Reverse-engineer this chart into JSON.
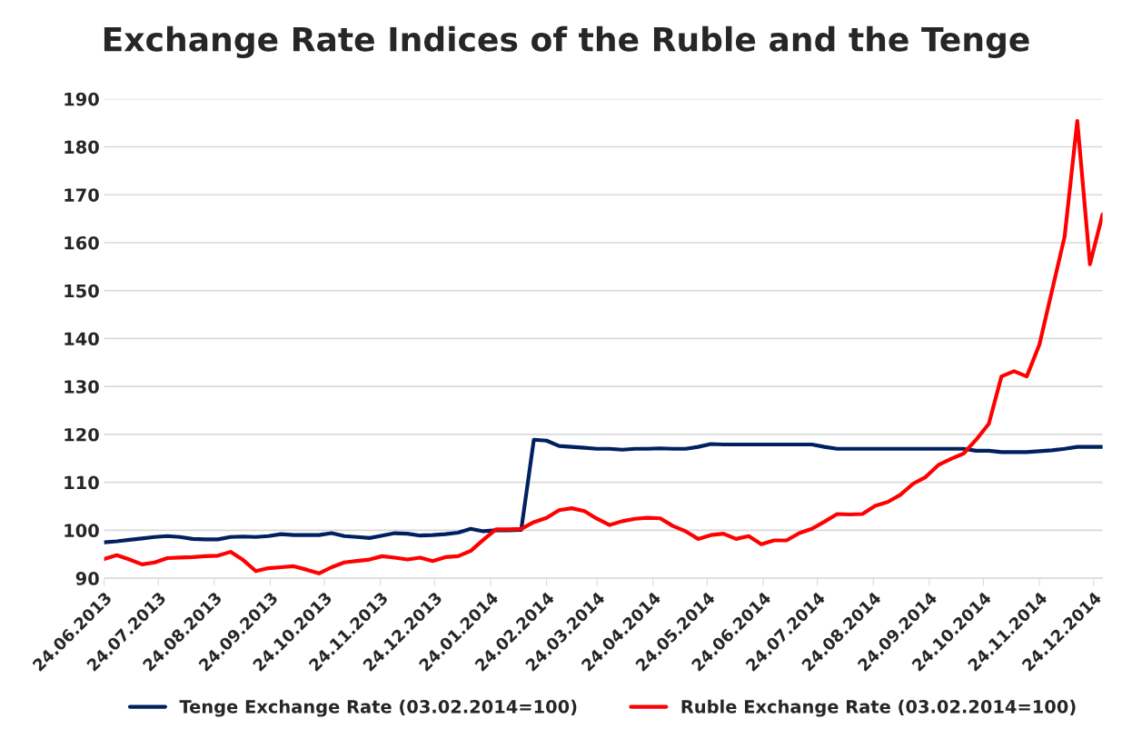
{
  "chart_data": {
    "type": "line",
    "title": "Exchange Rate Indices of the Ruble and the Tenge",
    "x": [
      "2013-06-24",
      "2013-07-01",
      "2013-07-08",
      "2013-07-15",
      "2013-07-22",
      "2013-07-29",
      "2013-08-05",
      "2013-08-12",
      "2013-08-19",
      "2013-08-26",
      "2013-09-02",
      "2013-09-09",
      "2013-09-16",
      "2013-09-23",
      "2013-09-30",
      "2013-10-07",
      "2013-10-14",
      "2013-10-21",
      "2013-10-28",
      "2013-11-04",
      "2013-11-11",
      "2013-11-18",
      "2013-11-25",
      "2013-12-02",
      "2013-12-09",
      "2013-12-16",
      "2013-12-23",
      "2013-12-30",
      "2014-01-06",
      "2014-01-13",
      "2014-01-20",
      "2014-01-27",
      "2014-02-03",
      "2014-02-10",
      "2014-02-17",
      "2014-02-24",
      "2014-03-03",
      "2014-03-10",
      "2014-03-17",
      "2014-03-24",
      "2014-03-31",
      "2014-04-07",
      "2014-04-14",
      "2014-04-21",
      "2014-04-28",
      "2014-05-05",
      "2014-05-12",
      "2014-05-19",
      "2014-05-26",
      "2014-06-02",
      "2014-06-09",
      "2014-06-16",
      "2014-06-23",
      "2014-06-30",
      "2014-07-07",
      "2014-07-14",
      "2014-07-21",
      "2014-07-28",
      "2014-08-04",
      "2014-08-11",
      "2014-08-18",
      "2014-08-25",
      "2014-09-01",
      "2014-09-08",
      "2014-09-15",
      "2014-09-22",
      "2014-09-29",
      "2014-10-06",
      "2014-10-13",
      "2014-10-20",
      "2014-10-27",
      "2014-11-03",
      "2014-11-10",
      "2014-11-17",
      "2014-11-24",
      "2014-12-01",
      "2014-12-08",
      "2014-12-15",
      "2014-12-22",
      "2014-12-29"
    ],
    "series": [
      {
        "name": "Tenge Exchange Rate (03.02.2014=100)",
        "color": "#002060",
        "values": [
          97.5,
          97.7,
          98.0,
          98.3,
          98.6,
          98.8,
          98.6,
          98.2,
          98.1,
          98.1,
          98.6,
          98.7,
          98.6,
          98.8,
          99.2,
          99.0,
          99.0,
          99.0,
          99.4,
          98.8,
          98.6,
          98.4,
          98.9,
          99.4,
          99.3,
          98.9,
          99.0,
          99.2,
          99.5,
          100.3,
          99.8,
          100.0,
          100.0,
          100.1,
          118.9,
          118.7,
          117.6,
          117.4,
          117.2,
          117.0,
          117.0,
          116.8,
          117.0,
          117.0,
          117.1,
          117.0,
          117.0,
          117.4,
          118.0,
          117.9,
          117.9,
          117.9,
          117.9,
          117.9,
          117.9,
          117.9,
          117.9,
          117.4,
          117.0,
          117.0,
          117.0,
          117.0,
          117.0,
          117.0,
          117.0,
          117.0,
          117.0,
          117.0,
          117.0,
          116.6,
          116.6,
          116.3,
          116.3,
          116.3,
          116.5,
          116.7,
          117.0,
          117.4,
          117.4,
          117.4
        ]
      },
      {
        "name": "Ruble Exchange Rate (03.02.2014=100)",
        "color": "#ff0000",
        "values": [
          94.0,
          94.8,
          93.9,
          92.9,
          93.3,
          94.2,
          94.3,
          94.4,
          94.6,
          94.7,
          95.5,
          93.8,
          91.5,
          92.1,
          92.3,
          92.5,
          91.8,
          91.0,
          92.3,
          93.3,
          93.6,
          93.9,
          94.6,
          94.3,
          93.9,
          94.3,
          93.6,
          94.4,
          94.6,
          95.7,
          98.0,
          100.2,
          100.2,
          100.3,
          101.7,
          102.6,
          104.2,
          104.6,
          104.0,
          102.4,
          101.1,
          101.9,
          102.4,
          102.6,
          102.5,
          100.9,
          99.8,
          98.2,
          99.0,
          99.3,
          98.2,
          98.8,
          97.1,
          97.9,
          97.9,
          99.4,
          100.3,
          101.8,
          103.4,
          103.3,
          103.4,
          105.1,
          105.9,
          107.4,
          109.7,
          111.1,
          113.6,
          114.9,
          116.0,
          118.9,
          122.2,
          132.1,
          133.2,
          132.1,
          138.7,
          150.0,
          161.3,
          185.4,
          155.5,
          165.9
        ]
      }
    ],
    "xlim": [
      "2013-06-24",
      "2014-12-29"
    ],
    "xticks": [
      {
        "value": "2013-06-24",
        "label": "24.06.2013"
      },
      {
        "value": "2013-07-24",
        "label": "24.07.2013"
      },
      {
        "value": "2013-08-24",
        "label": "24.08.2013"
      },
      {
        "value": "2013-09-24",
        "label": "24.09.2013"
      },
      {
        "value": "2013-10-24",
        "label": "24.10.2013"
      },
      {
        "value": "2013-11-24",
        "label": "24.11.2013"
      },
      {
        "value": "2013-12-24",
        "label": "24.12.2013"
      },
      {
        "value": "2014-01-24",
        "label": "24.01.2014"
      },
      {
        "value": "2014-02-24",
        "label": "24.02.2014"
      },
      {
        "value": "2014-03-24",
        "label": "24.03.2014"
      },
      {
        "value": "2014-04-24",
        "label": "24.04.2014"
      },
      {
        "value": "2014-05-24",
        "label": "24.05.2014"
      },
      {
        "value": "2014-06-24",
        "label": "24.06.2014"
      },
      {
        "value": "2014-07-24",
        "label": "24.07.2014"
      },
      {
        "value": "2014-08-24",
        "label": "24.08.2014"
      },
      {
        "value": "2014-09-24",
        "label": "24.09.2014"
      },
      {
        "value": "2014-10-24",
        "label": "24.10.2014"
      },
      {
        "value": "2014-11-24",
        "label": "24.11.2014"
      },
      {
        "value": "2014-12-24",
        "label": "24.12.2014"
      }
    ],
    "ylim": [
      90,
      190
    ],
    "yticks": [
      90,
      100,
      110,
      120,
      130,
      140,
      150,
      160,
      170,
      180,
      190
    ],
    "grid": "y",
    "legend": "bottom",
    "marker": "none",
    "line_style": "solid"
  }
}
